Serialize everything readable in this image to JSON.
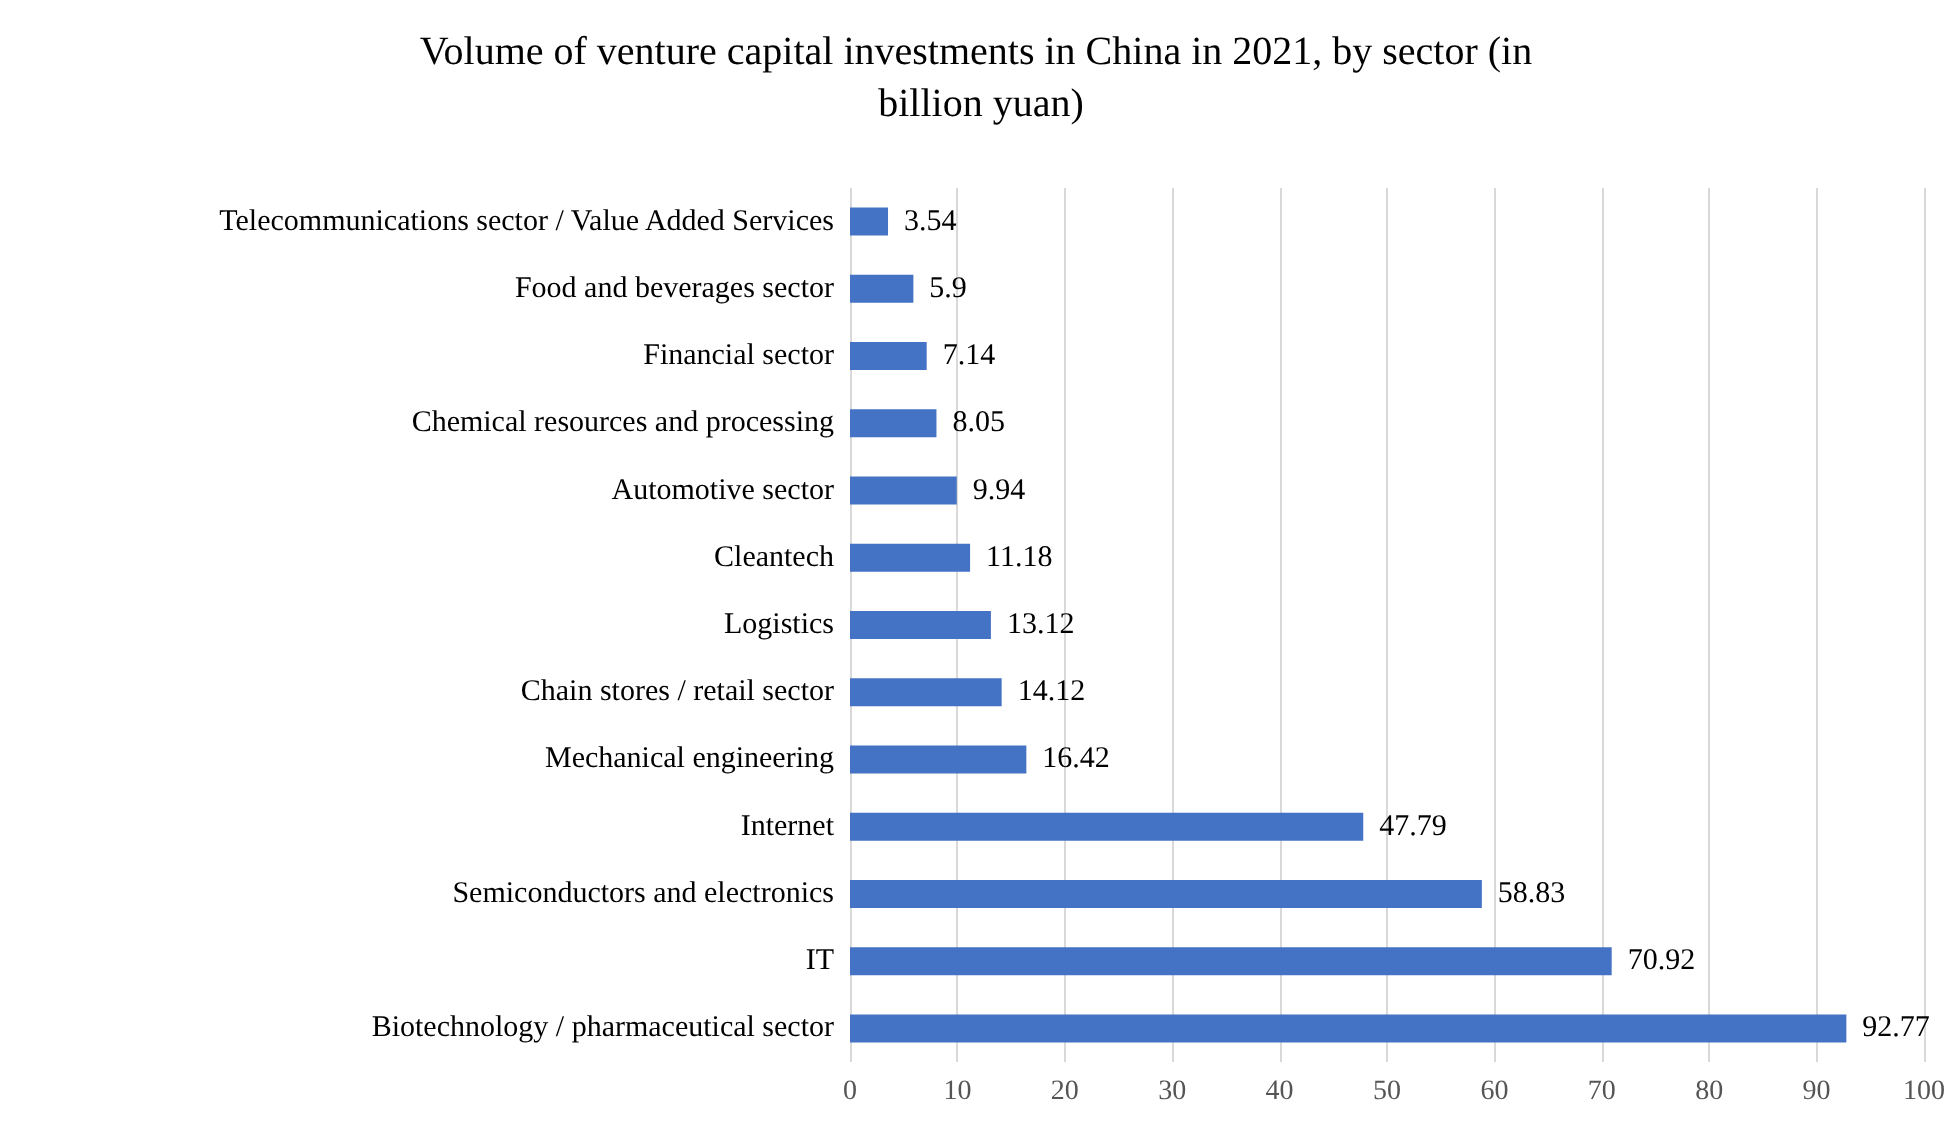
{
  "chart_data": {
    "type": "bar",
    "orientation": "horizontal",
    "title": "Volume of venture capital investments in China in 2021, by sector (in billion yuan)",
    "categories": [
      "Telecommunications sector / Value Added Services",
      "Food and beverages sector",
      "Financial sector",
      "Chemical resources and processing",
      "Automotive sector",
      "Cleantech",
      "Logistics",
      "Chain stores / retail sector",
      "Mechanical engineering",
      "Internet",
      "Semiconductors and electronics",
      "IT",
      "Biotechnology / pharmaceutical sector"
    ],
    "values": [
      3.54,
      5.9,
      7.14,
      8.05,
      9.94,
      11.18,
      13.12,
      14.12,
      16.42,
      47.79,
      58.83,
      70.92,
      92.77
    ],
    "color": "#4472c4",
    "xlim": [
      0,
      100
    ],
    "xticks": [
      0,
      10,
      20,
      30,
      40,
      50,
      60,
      70,
      80,
      90,
      100
    ],
    "grid": "x",
    "data_labels": true
  }
}
